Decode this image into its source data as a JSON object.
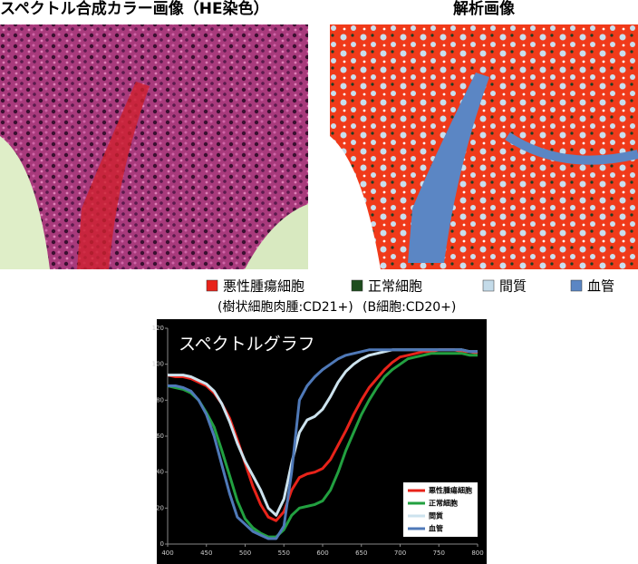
{
  "images": {
    "left_title": "スペクトル合成カラー画像（HE染色）",
    "right_title": "解析画像"
  },
  "legend": {
    "items": [
      {
        "label": "悪性腫瘍細胞",
        "note": "(樹状細胞肉腫:CD21+)",
        "color": "#e8231a"
      },
      {
        "label": "正常細胞",
        "note": "(B細胞:CD20+)",
        "color": "#1e4d1e"
      },
      {
        "label": "間質",
        "color": "#c4dbe9"
      },
      {
        "label": "血管",
        "color": "#5b86c4"
      }
    ]
  },
  "chart_data": {
    "type": "line",
    "title": "スペクトルグラフ",
    "x": [
      400,
      410,
      420,
      430,
      440,
      450,
      460,
      470,
      480,
      490,
      500,
      510,
      520,
      530,
      540,
      550,
      560,
      570,
      580,
      590,
      600,
      610,
      620,
      630,
      640,
      650,
      660,
      670,
      680,
      690,
      700,
      710,
      720,
      730,
      740,
      750,
      760,
      770,
      780,
      790,
      800
    ],
    "xlim": [
      400,
      800
    ],
    "xticks": [
      400,
      450,
      500,
      550,
      600,
      650,
      700,
      750,
      800
    ],
    "ylim": [
      0,
      120
    ],
    "yticks": [
      0,
      20,
      40,
      60,
      80,
      100,
      120
    ],
    "legend": "lower right",
    "series": [
      {
        "name": "悪性腫瘍細胞",
        "color": "#e8231a",
        "values": [
          94,
          93,
          93,
          92,
          90,
          88,
          84,
          78,
          70,
          58,
          45,
          32,
          22,
          15,
          13,
          18,
          30,
          37,
          39,
          40,
          42,
          47,
          55,
          63,
          72,
          80,
          87,
          92,
          97,
          101,
          104,
          105,
          106,
          107,
          107,
          108,
          108,
          108,
          107,
          107,
          106
        ]
      },
      {
        "name": "正常細胞",
        "color": "#22a040",
        "values": [
          88,
          87,
          86,
          84,
          80,
          73,
          65,
          52,
          38,
          24,
          14,
          9,
          6,
          4,
          4,
          8,
          16,
          20,
          21,
          22,
          24,
          30,
          40,
          52,
          62,
          72,
          80,
          87,
          93,
          97,
          100,
          103,
          104,
          105,
          106,
          106,
          106,
          106,
          106,
          105,
          105
        ]
      },
      {
        "name": "間質",
        "color": "#cde3ee",
        "values": [
          94,
          94,
          94,
          93,
          91,
          89,
          85,
          78,
          68,
          56,
          46,
          38,
          30,
          20,
          16,
          25,
          45,
          62,
          69,
          71,
          75,
          82,
          90,
          96,
          100,
          103,
          105,
          106,
          107,
          108,
          108,
          108,
          108,
          108,
          108,
          108,
          108,
          108,
          108,
          107,
          107
        ]
      },
      {
        "name": "血管",
        "color": "#4f79b8",
        "values": [
          88,
          88,
          87,
          85,
          80,
          72,
          60,
          44,
          28,
          15,
          11,
          7,
          5,
          3,
          3,
          10,
          40,
          80,
          88,
          93,
          97,
          100,
          103,
          105,
          106,
          107,
          108,
          108,
          108,
          108,
          108,
          108,
          108,
          108,
          108,
          108,
          108,
          108,
          108,
          107,
          107
        ]
      }
    ]
  }
}
